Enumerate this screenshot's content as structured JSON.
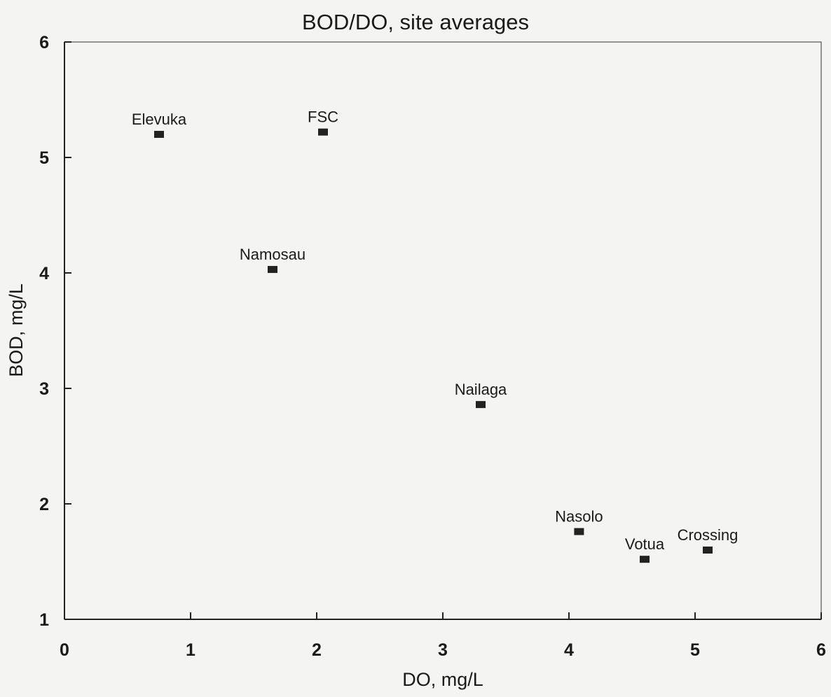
{
  "chart_data": {
    "type": "scatter",
    "title": "BOD/DO, site averages",
    "xlabel": "DO, mg/L",
    "ylabel": "BOD, mg/L",
    "xlim": [
      0,
      6
    ],
    "ylim": [
      1,
      6
    ],
    "xticks": [
      "0",
      "1",
      "2",
      "3",
      "4",
      "5",
      "6"
    ],
    "yticks": [
      "1",
      "2",
      "3",
      "4",
      "5",
      "6"
    ],
    "grid": false,
    "legend": "none",
    "marker": "square",
    "color": "#222222",
    "points": [
      {
        "label": "Elevuka",
        "x": 0.75,
        "y": 5.2
      },
      {
        "label": "FSC",
        "x": 2.05,
        "y": 5.22
      },
      {
        "label": "Namosau",
        "x": 1.65,
        "y": 4.03
      },
      {
        "label": "Nailaga",
        "x": 3.3,
        "y": 2.86
      },
      {
        "label": "Nasolo",
        "x": 4.08,
        "y": 1.76
      },
      {
        "label": "Votua",
        "x": 4.6,
        "y": 1.52
      },
      {
        "label": "Crossing",
        "x": 5.1,
        "y": 1.6
      }
    ]
  }
}
